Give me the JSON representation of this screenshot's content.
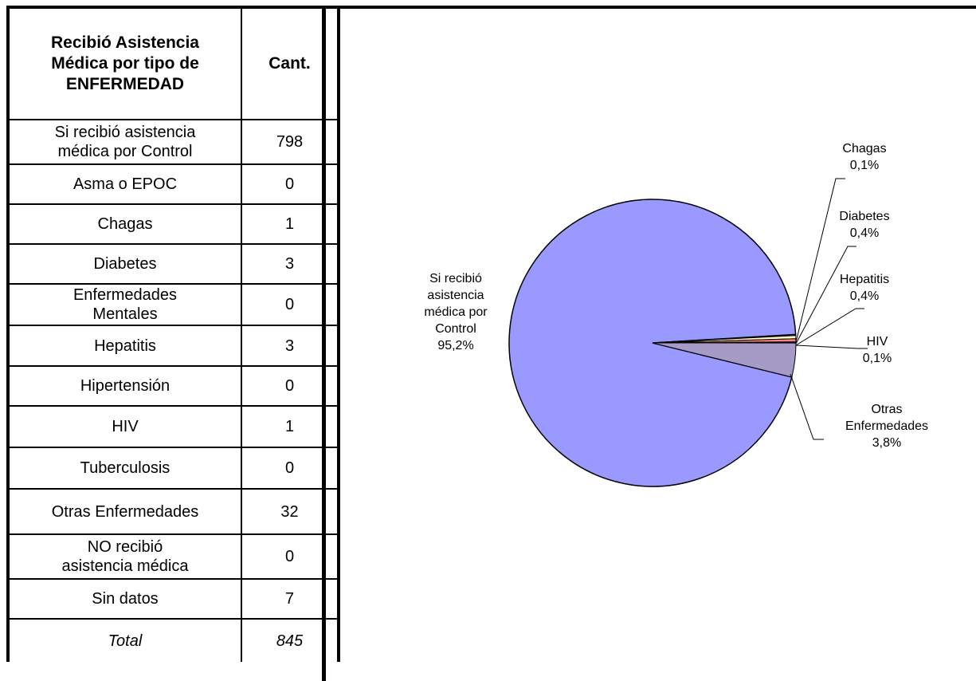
{
  "table": {
    "header": {
      "col1": [
        "Recibió Asistencia",
        "Médica por tipo de",
        "ENFERMEDAD"
      ],
      "col2": "Cant."
    },
    "rows": [
      {
        "label": [
          "Si recibió asistencia",
          "médica por Control"
        ],
        "value": "798"
      },
      {
        "label": [
          "Asma o EPOC"
        ],
        "value": "0"
      },
      {
        "label": [
          "Chagas"
        ],
        "value": "1"
      },
      {
        "label": [
          "Diabetes"
        ],
        "value": "3"
      },
      {
        "label": [
          "Enfermedades",
          "Mentales"
        ],
        "value": "0"
      },
      {
        "label": [
          "Hepatitis"
        ],
        "value": "3"
      },
      {
        "label": [
          "Hipertensión"
        ],
        "value": "0"
      },
      {
        "label": [
          "HIV"
        ],
        "value": "1"
      },
      {
        "label": [
          "Tuberculosis"
        ],
        "value": "0"
      },
      {
        "label": [
          "Otras Enfermedades"
        ],
        "value": "32"
      },
      {
        "label": [
          "NO recibió",
          "asistencia médica"
        ],
        "value": "0"
      },
      {
        "label": [
          "Sin datos"
        ],
        "value": "7"
      }
    ],
    "total": {
      "label": "Total",
      "value": "845"
    }
  },
  "chart_data": {
    "type": "pie",
    "slices": [
      {
        "name": "Si recibió asistencia médica por Control",
        "value": 798,
        "pct_label": "95,2%",
        "color": "#9999ff",
        "label_lines": [
          "Si recibió",
          "asistencia",
          "médica por",
          "Control",
          "95,2%"
        ]
      },
      {
        "name": "Chagas",
        "value": 1,
        "pct_label": "0,1%",
        "color": "#993366",
        "label_lines": [
          "Chagas",
          "0,1%"
        ]
      },
      {
        "name": "Diabetes",
        "value": 3,
        "pct_label": "0,4%",
        "color": "#ffffcc",
        "label_lines": [
          "Diabetes",
          "0,4%"
        ]
      },
      {
        "name": "Hepatitis",
        "value": 3,
        "pct_label": "0,4%",
        "color": "#ff8080",
        "label_lines": [
          "Hepatitis",
          "0,4%"
        ]
      },
      {
        "name": "HIV",
        "value": 1,
        "pct_label": "0,1%",
        "color": "#0066cc",
        "label_lines": [
          "HIV",
          "0,1%"
        ]
      },
      {
        "name": "Otras Enfermedades",
        "value": 32,
        "pct_label": "3,8%",
        "color": "#a69bc6",
        "label_lines": [
          "Otras",
          "Enfermedades",
          "3,8%"
        ]
      }
    ]
  }
}
